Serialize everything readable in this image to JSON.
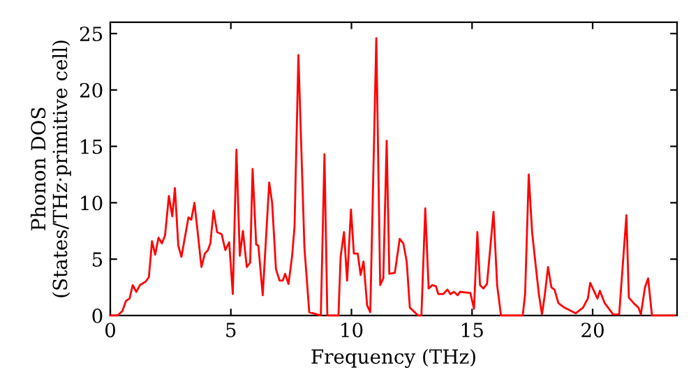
{
  "chart_data": {
    "type": "line",
    "xlabel": "Frequency (THz)",
    "ylabel": "Phonon DOS\n(States/THz·primitive cell)",
    "xlim": [
      0,
      23.5
    ],
    "ylim": [
      0,
      26
    ],
    "xticks": [
      0,
      5,
      10,
      15,
      20
    ],
    "yticks": [
      0,
      5,
      10,
      15,
      20,
      25
    ],
    "grid": false,
    "legend": false,
    "marker": "none",
    "line_style": "solid",
    "series": [
      {
        "color": "#ff0000",
        "x": [
          0,
          0.3,
          0.5,
          0.65,
          0.8,
          0.93,
          1.08,
          1.23,
          1.46,
          1.6,
          1.73,
          1.86,
          2.0,
          2.14,
          2.27,
          2.43,
          2.57,
          2.68,
          2.82,
          2.95,
          3.24,
          3.36,
          3.49,
          3.78,
          3.92,
          4.05,
          4.15,
          4.28,
          4.43,
          4.62,
          4.77,
          4.93,
          5.08,
          5.23,
          5.37,
          5.5,
          5.66,
          5.8,
          5.9,
          6.05,
          6.14,
          6.32,
          6.59,
          6.71,
          6.87,
          7.02,
          7.15,
          7.25,
          7.39,
          7.54,
          7.64,
          7.8,
          8.05,
          8.25,
          8.73,
          8.88,
          9.0,
          9.46,
          9.55,
          9.69,
          9.82,
          9.98,
          10.1,
          10.26,
          10.38,
          10.5,
          10.65,
          10.78,
          11.03,
          11.19,
          11.32,
          11.46,
          11.57,
          11.8,
          12.0,
          12.15,
          12.29,
          12.42,
          12.77,
          12.9,
          13.06,
          13.2,
          13.35,
          13.5,
          13.6,
          13.8,
          13.98,
          14.1,
          14.25,
          14.4,
          14.5,
          14.93,
          15.08,
          15.22,
          15.33,
          15.47,
          15.62,
          15.89,
          16.04,
          16.2,
          17.1,
          17.2,
          17.35,
          17.49,
          17.6,
          17.77,
          17.9,
          18.02,
          18.15,
          18.29,
          18.42,
          18.58,
          18.83,
          19.3,
          19.6,
          19.8,
          19.9,
          20.2,
          20.3,
          20.5,
          20.85,
          21.1,
          21.4,
          21.5,
          21.7,
          21.9,
          22.0,
          22.17,
          22.3,
          22.46,
          23.4
        ],
        "values": [
          0,
          0,
          0.4,
          1.3,
          1.5,
          2.7,
          2.1,
          2.7,
          3.0,
          3.4,
          6.6,
          5.4,
          6.9,
          6.4,
          7.1,
          10.6,
          8.8,
          11.3,
          6.2,
          5.2,
          8.7,
          8.5,
          10.0,
          4.3,
          5.5,
          5.8,
          6.4,
          9.3,
          7.4,
          7.2,
          5.8,
          6.5,
          1.9,
          14.7,
          5.3,
          7.5,
          4.3,
          4.7,
          13.0,
          6.3,
          6.2,
          1.8,
          11.8,
          10.0,
          4.1,
          3.1,
          3.1,
          3.7,
          2.8,
          5.3,
          7.9,
          23.1,
          6.0,
          0.3,
          0,
          14.3,
          0,
          0,
          5.2,
          7.4,
          3.1,
          9.4,
          5.5,
          5.5,
          3.6,
          4.8,
          0.9,
          0.3,
          24.6,
          2.7,
          3.3,
          15.5,
          3.7,
          3.8,
          6.8,
          6.4,
          4.8,
          0.7,
          0,
          0,
          9.5,
          2.4,
          2.7,
          2.6,
          1.9,
          1.9,
          2.3,
          1.9,
          2.1,
          1.8,
          2.1,
          2.0,
          0.6,
          7.4,
          2.7,
          2.4,
          2.8,
          9.2,
          2.7,
          0,
          0,
          1.9,
          12.5,
          7.4,
          5.2,
          1.9,
          0.1,
          1.9,
          4.3,
          2.5,
          2.3,
          1.1,
          0.7,
          0.2,
          0.7,
          1.5,
          2.9,
          1.5,
          2.2,
          1.1,
          0.1,
          0.1,
          8.9,
          1.6,
          1.1,
          0.7,
          0.1,
          2.5,
          3.3,
          0,
          0
        ]
      }
    ]
  }
}
